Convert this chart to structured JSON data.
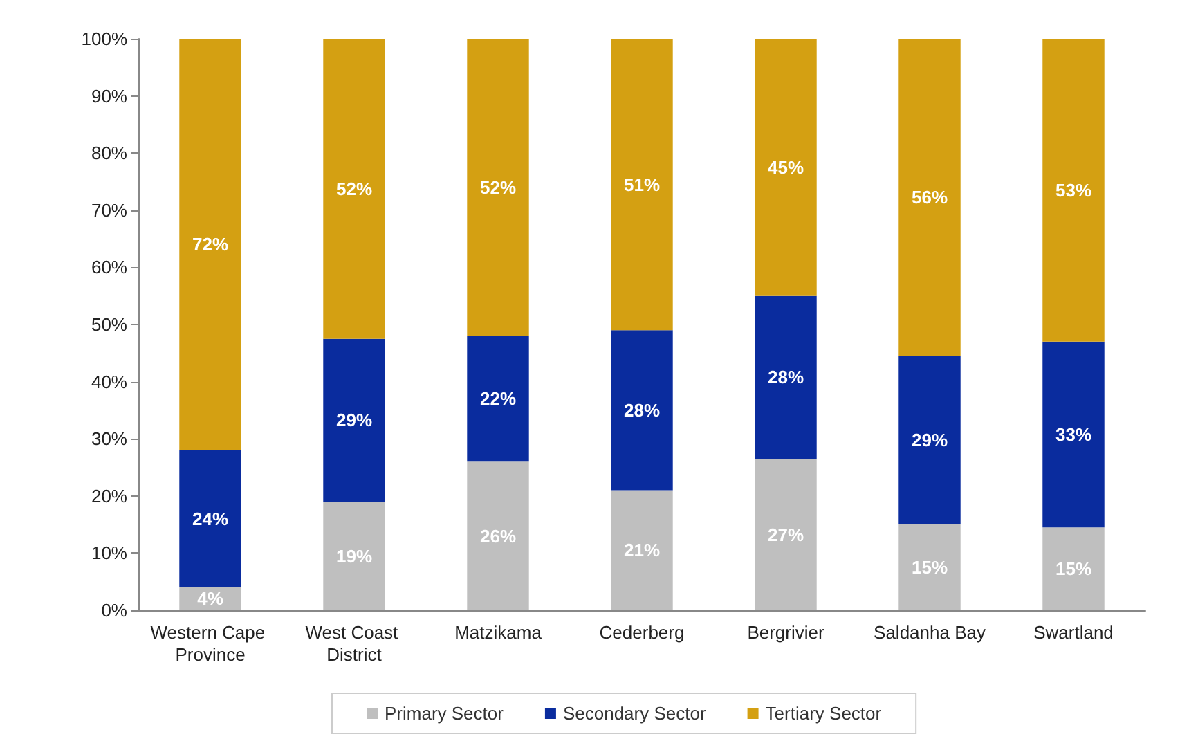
{
  "chart_data": {
    "type": "bar",
    "stacked": true,
    "categories": [
      "Western Cape Province",
      "West Coast District",
      "Matzikama",
      "Cederberg",
      "Bergrivier",
      "Saldanha Bay",
      "Swartland"
    ],
    "series": [
      {
        "name": "Primary Sector",
        "color": "#bfbfbf",
        "values": [
          4,
          19,
          26,
          21,
          26.5,
          15,
          14.5
        ],
        "value_labels": [
          "4%",
          "19%",
          "26%",
          "21%",
          "27%",
          "15%",
          "15%"
        ]
      },
      {
        "name": "Secondary Sector",
        "color": "#0a2c9e",
        "values": [
          24,
          28.5,
          22,
          28,
          28.5,
          29.5,
          32.5
        ],
        "value_labels": [
          "24%",
          "29%",
          "22%",
          "28%",
          "28%",
          "29%",
          "33%"
        ]
      },
      {
        "name": "Tertiary Sector",
        "color": "#d4a012",
        "values": [
          72,
          52.5,
          52,
          51,
          45,
          55.5,
          53
        ],
        "value_labels": [
          "72%",
          "52%",
          "52%",
          "51%",
          "45%",
          "56%",
          "53%"
        ]
      }
    ],
    "ylim": [
      0,
      100
    ],
    "yticks": [
      {
        "value": 0,
        "label": "0%"
      },
      {
        "value": 10,
        "label": "10%"
      },
      {
        "value": 20,
        "label": "20%"
      },
      {
        "value": 30,
        "label": "30%"
      },
      {
        "value": 40,
        "label": "40%"
      },
      {
        "value": 50,
        "label": "50%"
      },
      {
        "value": 60,
        "label": "60%"
      },
      {
        "value": 70,
        "label": "70%"
      },
      {
        "value": 80,
        "label": "80%"
      },
      {
        "value": 90,
        "label": "90%"
      },
      {
        "value": 100,
        "label": "100%"
      }
    ],
    "grid": false,
    "legend": "bottom"
  }
}
